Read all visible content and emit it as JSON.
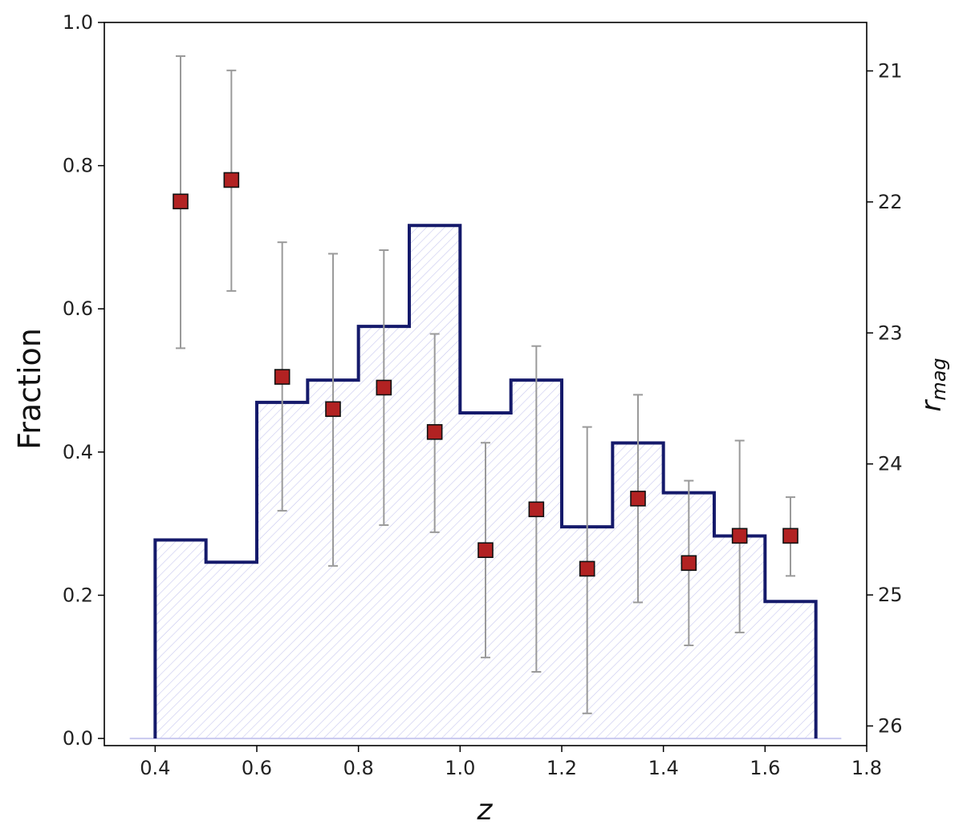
{
  "chart_data": {
    "type": "step-histogram-with-errorbars",
    "xlabel": "z",
    "ylabel": "Fraction",
    "y2label": "r_mag",
    "y2label_main": "r",
    "y2label_sub": "mag",
    "xlim": [
      0.3,
      1.8
    ],
    "ylim": [
      -0.01,
      1.0
    ],
    "y2lim": [
      26.15,
      20.63
    ],
    "x_ticks": [
      0.4,
      0.6,
      0.8,
      1.0,
      1.2,
      1.4,
      1.6,
      1.8
    ],
    "x_tick_labels": [
      "0.4",
      "0.6",
      "0.8",
      "1.0",
      "1.2",
      "1.4",
      "1.6",
      "1.8"
    ],
    "y_ticks": [
      0.0,
      0.2,
      0.4,
      0.6,
      0.8,
      1.0
    ],
    "y_tick_labels": [
      "0.0",
      "0.2",
      "0.4",
      "0.6",
      "0.8",
      "1.0"
    ],
    "y2_ticks": [
      21,
      22,
      23,
      24,
      25,
      26
    ],
    "y2_tick_labels": [
      "21",
      "22",
      "23",
      "24",
      "25",
      "26"
    ],
    "histogram": {
      "bin_edges": [
        0.4,
        0.5,
        0.6,
        0.7,
        0.8,
        0.9,
        1.0,
        1.1,
        1.2,
        1.3,
        1.4,
        1.5,
        1.6,
        1.7
      ],
      "values": [
        24.58,
        24.75,
        23.53,
        23.36,
        22.95,
        22.18,
        23.61,
        23.36,
        24.48,
        23.84,
        24.22,
        24.55,
        25.05
      ],
      "axis": "right",
      "line_color": "#151a6b",
      "fill_color": "#c8c8ef"
    },
    "points": {
      "x": [
        0.45,
        0.55,
        0.65,
        0.75,
        0.85,
        0.95,
        1.05,
        1.15,
        1.25,
        1.35,
        1.45,
        1.55,
        1.65
      ],
      "y": [
        0.75,
        0.78,
        0.505,
        0.46,
        0.49,
        0.428,
        0.263,
        0.32,
        0.237,
        0.335,
        0.245,
        0.283,
        0.283
      ],
      "yerr_low": [
        0.545,
        0.625,
        0.318,
        0.241,
        0.298,
        0.288,
        0.113,
        0.093,
        0.035,
        0.19,
        0.13,
        0.148,
        0.227
      ],
      "yerr_high": [
        0.953,
        0.933,
        0.693,
        0.677,
        0.682,
        0.565,
        0.413,
        0.548,
        0.435,
        0.48,
        0.36,
        0.416,
        0.337
      ],
      "marker_color": "#b22222",
      "errorbar_color": "#9a9a9a"
    }
  }
}
